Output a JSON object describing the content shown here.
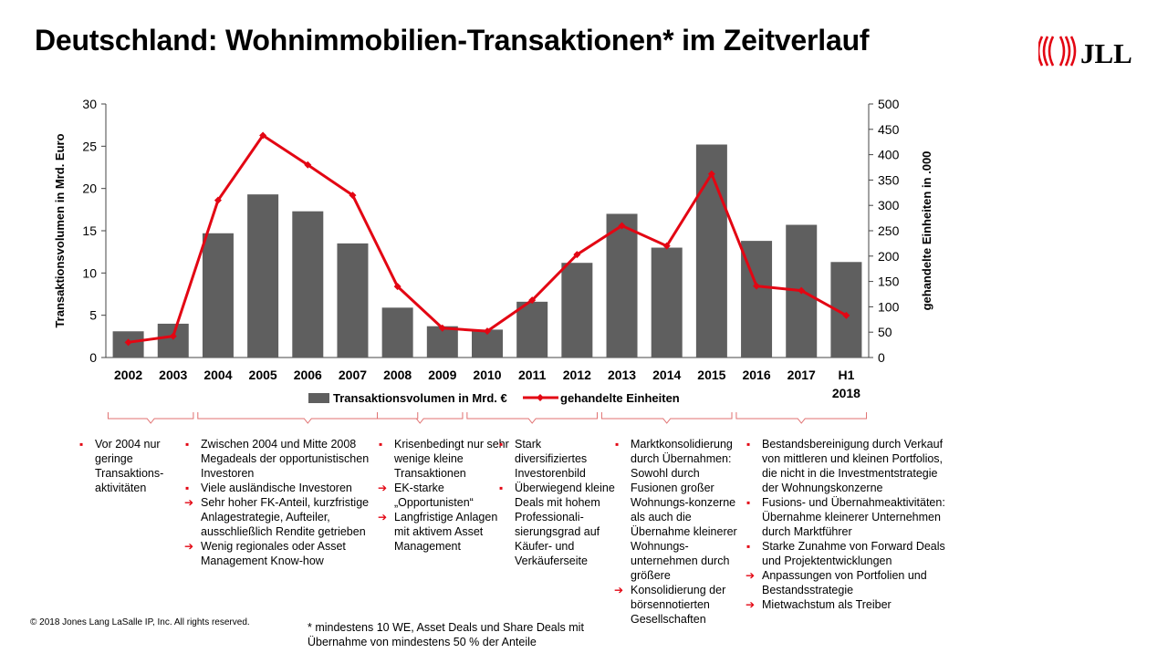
{
  "title": "Deutschland: Wohnimmobilien-Transaktionen* im Zeitverlauf",
  "logo": {
    "icon": "jll-logo-icon",
    "text": "JLL",
    "color": "#e30613"
  },
  "colors": {
    "bar": "#5f5f5f",
    "line": "#e30613",
    "bullet": "#e30613"
  },
  "chart_data": {
    "type": "bar",
    "categories": [
      "2002",
      "2003",
      "2004",
      "2005",
      "2006",
      "2007",
      "2008",
      "2009",
      "2010",
      "2011",
      "2012",
      "2013",
      "2014",
      "2015",
      "2016",
      "2017",
      "H1 2018"
    ],
    "series": [
      {
        "name": "Transaktionsvolumen in Mrd. €",
        "type": "bar",
        "axis": "left",
        "values": [
          3.1,
          4.0,
          14.7,
          19.3,
          17.3,
          13.5,
          5.9,
          3.7,
          3.3,
          6.6,
          11.2,
          17.0,
          13.0,
          25.2,
          13.8,
          15.7,
          11.3
        ]
      },
      {
        "name": "gehandelte Einheiten",
        "type": "line",
        "axis": "right",
        "values": [
          30,
          42,
          310,
          438,
          380,
          320,
          140,
          58,
          52,
          113,
          203,
          260,
          220,
          362,
          141,
          132,
          83
        ]
      }
    ],
    "ylabel": "Transaktionsvolumen in Mrd. Euro",
    "ylabel_right": "gehandelte Einheiten in .000",
    "ylim": [
      0,
      30
    ],
    "ylim_right": [
      0,
      500
    ],
    "yticks": [
      0,
      5,
      10,
      15,
      20,
      25,
      30
    ],
    "yticks_right": [
      0,
      50,
      100,
      150,
      200,
      250,
      300,
      350,
      400,
      450,
      500
    ],
    "grid": false,
    "legend_position": "bottom"
  },
  "columns": [
    {
      "items": [
        {
          "type": "bullet",
          "text": "Vor 2004 nur geringe Transaktions-aktivitäten"
        }
      ]
    },
    {
      "items": [
        {
          "type": "bullet",
          "text": "Zwischen 2004 und Mitte 2008 Megadeals der opportunistischen Investoren"
        },
        {
          "type": "bullet",
          "text": "Viele ausländische Investoren"
        },
        {
          "type": "arrow",
          "text": "Sehr hoher FK-Anteil, kurzfristige Anlagestrategie, Aufteiler, ausschließlich Rendite getrieben"
        },
        {
          "type": "arrow",
          "text": "Wenig regionales oder Asset Management Know-how"
        }
      ]
    },
    {
      "items": [
        {
          "type": "bullet",
          "text": "Krisenbedingt nur sehr wenige kleine Transaktionen"
        },
        {
          "type": "arrow",
          "text": "EK-starke „Opportunisten“"
        },
        {
          "type": "arrow",
          "text": "Langfristige Anlagen mit aktivem Asset Management"
        }
      ]
    },
    {
      "items": [
        {
          "type": "bullet",
          "text": "Stark diversifiziertes Investorenbild"
        },
        {
          "type": "bullet",
          "text": "Überwiegend kleine Deals mit hohem Professionali-sierungsgrad auf Käufer- und Verkäuferseite"
        }
      ]
    },
    {
      "items": [
        {
          "type": "bullet",
          "text": "Marktkonsolidierung durch Übernahmen: Sowohl durch Fusionen großer Wohnungs-konzerne als auch die Übernahme kleinerer Wohnungs-unternehmen durch größere"
        },
        {
          "type": "arrow",
          "text": "Konsolidierung der börsennotierten Gesellschaften"
        }
      ]
    },
    {
      "items": [
        {
          "type": "bullet",
          "text": "Bestandsbereinigung durch Verkauf von mittleren und kleinen Portfolios, die nicht in die Investmentstrategie der Wohnungskonzerne"
        },
        {
          "type": "bullet",
          "text": "Fusions- und Übernahmeaktivitäten: Übernahme kleinerer Unternehmen durch Marktführer"
        },
        {
          "type": "bullet",
          "text": "Starke Zunahme von Forward Deals und Projektentwicklungen"
        },
        {
          "type": "arrow",
          "text": "Anpassungen von Portfolien und Bestandsstrategie"
        },
        {
          "type": "arrow",
          "text": "Mietwachstum als Treiber"
        }
      ]
    }
  ],
  "copyright": "© 2018 Jones Lang LaSalle IP, Inc. All rights reserved.",
  "footnote": "* mindestens 10 WE, Asset Deals und Share Deals mit Übernahme von mindestens 50 % der Anteile"
}
